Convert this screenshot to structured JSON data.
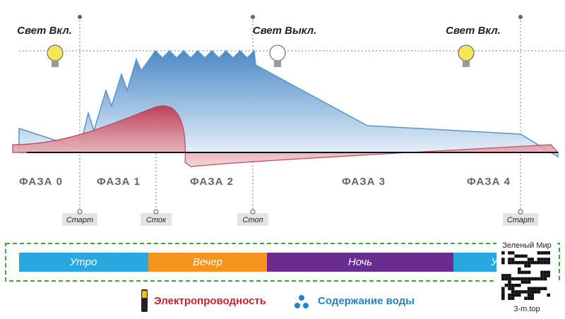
{
  "light_labels": [
    "Свет Вкл.",
    "Свет Выкл.",
    "Свет Вкл."
  ],
  "phases": [
    "ФАЗА 0",
    "ФАЗА 1",
    "ФАЗА 2",
    "ФАЗА 3",
    "ФАЗА 4"
  ],
  "markers": [
    "Старт",
    "Сток",
    "Стоп",
    "Старт"
  ],
  "periods": [
    "Утро",
    "Вечер",
    "Ночь",
    "У"
  ],
  "legend": [
    "Электропроводность",
    "Содержание воды"
  ],
  "watermark": {
    "title": "Зеленый Мир",
    "site": "3-m.top"
  }
}
